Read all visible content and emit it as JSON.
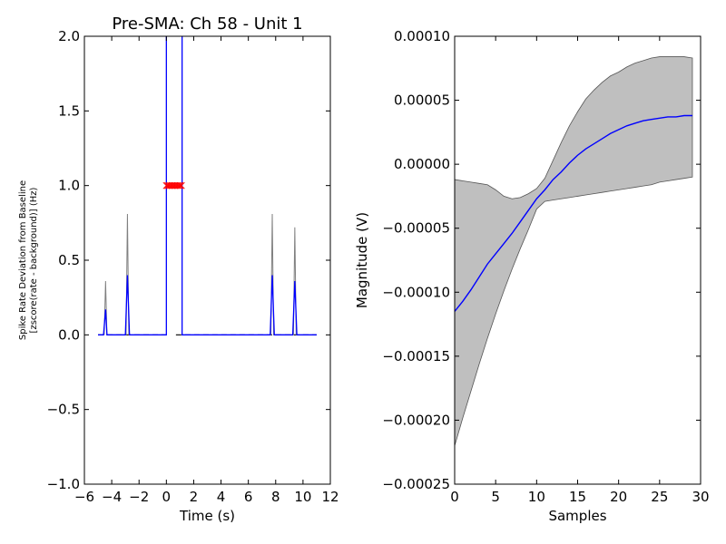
{
  "chart_data": [
    {
      "type": "line",
      "title": "Pre-SMA: Ch 58 - Unit 1",
      "xlabel": "Time (s)",
      "ylabel_line1": "Spike Rate Deviation from Baseline",
      "ylabel_line2": "[zscore(rate - background)] (Hz)",
      "xlim": [
        -6,
        12
      ],
      "ylim": [
        -1.0,
        2.0
      ],
      "xticks": [
        -6,
        -4,
        -2,
        0,
        2,
        4,
        6,
        8,
        10,
        12
      ],
      "xtick_labels": [
        "−6",
        "−4",
        "−2",
        "0",
        "2",
        "4",
        "6",
        "8",
        "10",
        "12"
      ],
      "yticks": [
        -1.0,
        -0.5,
        0.0,
        0.5,
        1.0,
        1.5,
        2.0
      ],
      "ytick_labels": [
        "−1.0",
        "−0.5",
        "0.0",
        "0.5",
        "1.0",
        "1.5",
        "2.0"
      ],
      "colors": {
        "mean": "#0000ff",
        "upper": "#808080",
        "baseline": "#000000",
        "markers": "#ff0000"
      },
      "segments": [
        {
          "name": "pre-event",
          "mean": [
            [
              -5.0,
              0
            ],
            [
              -4.6,
              0
            ],
            [
              -4.45,
              0.17
            ],
            [
              -4.35,
              0
            ],
            [
              -3.0,
              0
            ],
            [
              -2.85,
              0.4
            ],
            [
              -2.7,
              0
            ],
            [
              -0.1,
              0
            ],
            [
              0,
              0
            ],
            [
              0,
              2.0
            ]
          ],
          "upper": [
            [
              -4.55,
              0
            ],
            [
              -4.45,
              0.36
            ],
            [
              -4.35,
              0
            ],
            [
              -2.95,
              0
            ],
            [
              -2.85,
              0.81
            ],
            [
              -2.75,
              0
            ]
          ],
          "baseline": [
            [
              -5.0,
              0
            ],
            [
              -0.1,
              0
            ]
          ]
        },
        {
          "name": "post-event",
          "mean": [
            [
              1.15,
              2.0
            ],
            [
              1.15,
              0
            ],
            [
              7.6,
              0
            ],
            [
              7.75,
              0.4
            ],
            [
              7.9,
              0
            ],
            [
              9.25,
              0
            ],
            [
              9.4,
              0.36
            ],
            [
              9.55,
              0
            ],
            [
              11.0,
              0
            ]
          ],
          "upper": [
            [
              7.65,
              0
            ],
            [
              7.75,
              0.81
            ],
            [
              7.85,
              0
            ],
            [
              9.3,
              0
            ],
            [
              9.4,
              0.72
            ],
            [
              9.5,
              0
            ]
          ],
          "baseline": [
            [
              0.7,
              0
            ],
            [
              11.0,
              0
            ]
          ]
        }
      ],
      "markers": {
        "x": [
          0.0,
          0.1,
          0.2,
          0.3,
          0.4,
          0.5,
          0.6,
          0.7,
          0.8,
          0.9,
          1.0,
          1.1
        ],
        "y": 1.0,
        "symbol": "x"
      }
    },
    {
      "type": "area",
      "xlabel": "Samples",
      "ylabel": "Magnitude (V)",
      "xlim": [
        0,
        30
      ],
      "ylim": [
        -0.00025,
        0.0001
      ],
      "xticks": [
        0,
        5,
        10,
        15,
        20,
        25,
        30
      ],
      "xtick_labels": [
        "0",
        "5",
        "10",
        "15",
        "20",
        "25",
        "30"
      ],
      "yticks": [
        -0.00025,
        -0.0002,
        -0.00015,
        -0.0001,
        -5e-05,
        0.0,
        5e-05,
        0.0001
      ],
      "ytick_labels": [
        "−0.00025",
        "−0.00020",
        "−0.00015",
        "−0.00010",
        "−0.00005",
        "0.00000",
        "0.00005",
        "0.00010"
      ],
      "colors": {
        "mean": "#0000ff",
        "band": "#bfbfbf",
        "band_edge": "#555555"
      },
      "x": [
        0,
        1,
        2,
        3,
        4,
        5,
        6,
        7,
        8,
        9,
        10,
        11,
        12,
        13,
        14,
        15,
        16,
        17,
        18,
        19,
        20,
        21,
        22,
        23,
        24,
        25,
        26,
        27,
        28,
        29
      ],
      "mean": [
        -0.000115,
        -0.000107,
        -9.8e-05,
        -8.8e-05,
        -7.8e-05,
        -7e-05,
        -6.2e-05,
        -5.4e-05,
        -4.5e-05,
        -3.6e-05,
        -2.7e-05,
        -2e-05,
        -1.2e-05,
        -6e-06,
        1e-06,
        7e-06,
        1.2e-05,
        1.6e-05,
        2e-05,
        2.4e-05,
        2.7e-05,
        3e-05,
        3.2e-05,
        3.4e-05,
        3.5e-05,
        3.6e-05,
        3.7e-05,
        3.7e-05,
        3.8e-05,
        3.8e-05
      ],
      "upper": [
        -1.2e-05,
        -1.3e-05,
        -1.4e-05,
        -1.5e-05,
        -1.6e-05,
        -2e-05,
        -2.5e-05,
        -2.7e-05,
        -2.6e-05,
        -2.3e-05,
        -1.9e-05,
        -1.1e-05,
        3e-06,
        1.7e-05,
        3e-05,
        4.1e-05,
        5.1e-05,
        5.8e-05,
        6.4e-05,
        6.9e-05,
        7.2e-05,
        7.6e-05,
        7.9e-05,
        8.1e-05,
        8.3e-05,
        8.4e-05,
        8.4e-05,
        8.4e-05,
        8.4e-05,
        8.3e-05
      ],
      "lower": [
        -0.00022,
        -0.000198,
        -0.000177,
        -0.000156,
        -0.000136,
        -0.000117,
        -9.9e-05,
        -8.2e-05,
        -6.6e-05,
        -5.1e-05,
        -3.5e-05,
        -2.9e-05,
        -2.8e-05,
        -2.7e-05,
        -2.6e-05,
        -2.5e-05,
        -2.4e-05,
        -2.3e-05,
        -2.2e-05,
        -2.1e-05,
        -2e-05,
        -1.9e-05,
        -1.8e-05,
        -1.7e-05,
        -1.6e-05,
        -1.4e-05,
        -1.3e-05,
        -1.2e-05,
        -1.1e-05,
        -1e-05
      ]
    }
  ]
}
